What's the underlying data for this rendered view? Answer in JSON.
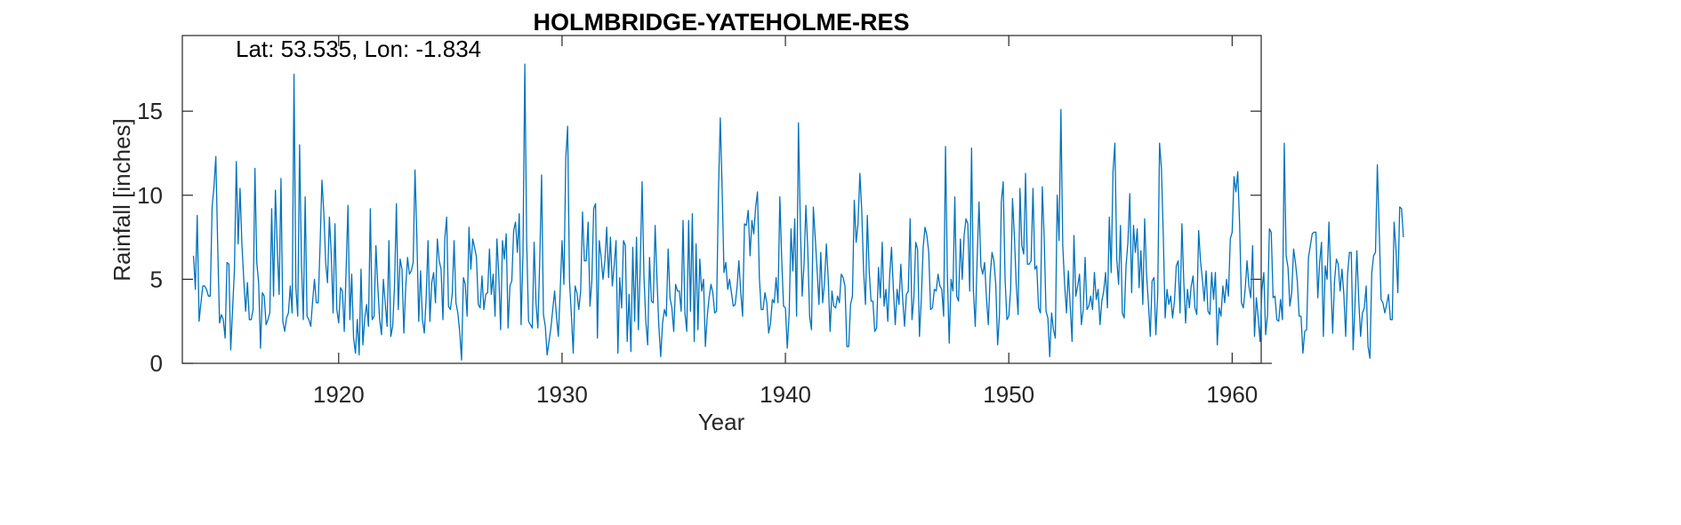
{
  "chart_data": {
    "type": "line",
    "title": "HOLMBRIDGE-YATEHOLME-RES",
    "annotation": "Lat: 53.535, Lon: -1.834",
    "xlabel": "Year",
    "ylabel": "Rainfall [inches]",
    "xlim": [
      1913.0,
      1961.3
    ],
    "ylim": [
      0,
      19.5
    ],
    "x_ticks": [
      1920,
      1930,
      1940,
      1950,
      1960
    ],
    "y_ticks": [
      0,
      5,
      10,
      15
    ],
    "grid": false,
    "series_color": "#0072BD",
    "series": [
      {
        "x_start": 1913.5,
        "x_step": 0.0833333,
        "values": [
          6.4,
          4.4,
          8.8,
          2.5,
          3.6,
          4.6,
          4.6,
          4.4,
          4.0,
          4.0,
          9.3,
          10.5,
          12.3,
          7.0,
          2.4,
          2.9,
          2.6,
          1.5,
          6.0,
          5.9,
          0.8,
          3.2,
          5.6,
          12.0,
          7.1,
          10.4,
          7.1,
          5.0,
          3.1,
          4.8,
          2.6,
          2.6,
          3.2,
          11.6,
          6.0,
          4.8,
          0.9,
          4.2,
          4.0,
          2.3,
          2.6,
          3.0,
          9.2,
          4.0,
          10.3,
          6.9,
          4.1,
          11.0,
          2.5,
          1.9,
          2.7,
          3.0,
          4.6,
          3.0,
          17.2,
          4.5,
          2.8,
          13.0,
          6.0,
          2.6,
          9.9,
          2.8,
          2.6,
          2.2,
          3.7,
          5.0,
          3.6,
          3.6,
          7.0,
          10.9,
          9.0,
          6.0,
          4.8,
          8.7,
          6.5,
          3.0,
          8.3,
          3.2,
          2.4,
          4.5,
          4.3,
          1.9,
          5.6,
          9.4,
          2.6,
          5.3,
          1.5,
          0.6,
          2.6,
          0.5,
          5.6,
          1.1,
          2.7,
          3.5,
          2.2,
          9.2,
          2.6,
          2.8,
          7.0,
          4.6,
          2.6,
          1.7,
          5.0,
          3.6,
          2.2,
          7.3,
          1.6,
          2.2,
          4.6,
          9.5,
          3.2,
          6.2,
          5.6,
          1.8,
          4.5,
          6.3,
          5.3,
          5.5,
          6.0,
          11.5,
          7.5,
          2.5,
          5.5,
          2.6,
          1.8,
          3.9,
          7.3,
          2.5,
          4.8,
          5.4,
          3.6,
          7.4,
          6.1,
          5.6,
          2.6,
          7.4,
          8.7,
          3.4,
          3.2,
          4.1,
          7.3,
          3.6,
          3.0,
          1.9,
          0.2,
          5.1,
          4.7,
          2.8,
          8.1,
          5.6,
          7.4,
          6.9,
          6.3,
          3.5,
          3.3,
          5.2,
          3.2,
          4.1,
          4.2,
          6.8,
          4.1,
          5.3,
          2.8,
          7.4,
          5.3,
          2.0,
          7.3,
          6.2,
          7.7,
          2.1,
          4.6,
          4.9,
          7.9,
          8.4,
          6.6,
          8.9,
          2.3,
          6.5,
          17.8,
          7.2,
          2.5,
          2.3,
          2.1,
          7.2,
          3.6,
          2.1,
          6.0,
          11.2,
          2.9,
          2.2,
          0.5,
          1.3,
          2.1,
          3.2,
          4.3,
          2.8,
          1.6,
          4.3,
          7.3,
          4.7,
          12.2,
          14.1,
          4.9,
          2.9,
          0.6,
          4.6,
          4.2,
          3.2,
          4.3,
          9.0,
          6.1,
          6.1,
          8.4,
          3.4,
          4.9,
          9.2,
          9.5,
          1.5,
          7.3,
          6.3,
          5.0,
          6.1,
          8.1,
          5.1,
          7.5,
          4.6,
          5.8,
          7.3,
          0.6,
          5.1,
          3.3,
          7.3,
          7.0,
          1.3,
          4.1,
          0.7,
          6.9,
          2.5,
          7.5,
          2.0,
          5.7,
          10.8,
          5.2,
          2.5,
          1.1,
          6.3,
          3.7,
          3.6,
          8.2,
          5.0,
          2.2,
          0.4,
          2.4,
          3.2,
          2.8,
          6.8,
          3.9,
          3.3,
          1.9,
          4.7,
          4.3,
          4.3,
          3.1,
          8.5,
          3.0,
          1.9,
          8.5,
          3.1,
          8.9,
          1.3,
          7.1,
          2.0,
          6.2,
          4.3,
          5.0,
          1.0,
          2.8,
          3.9,
          4.7,
          4.2,
          3.0,
          3.1,
          10.1,
          14.6,
          10.4,
          5.4,
          6.0,
          4.4,
          5.0,
          4.2,
          3.4,
          3.5,
          4.5,
          6.1,
          4.2,
          2.8,
          8.3,
          8.2,
          9.1,
          6.4,
          8.5,
          7.7,
          9.3,
          10.2,
          5.1,
          3.2,
          3.2,
          4.2,
          3.6,
          1.8,
          2.4,
          3.8,
          3.6,
          5.1,
          3.6,
          9.9,
          6.2,
          3.4,
          3.3,
          0.9,
          2.9,
          8.0,
          5.5,
          8.6,
          2.8,
          14.3,
          8.3,
          4.0,
          5.9,
          9.4,
          6.8,
          2.8,
          2.0,
          9.3,
          7.5,
          5.6,
          3.5,
          6.6,
          3.6,
          4.8,
          7.1,
          5.0,
          1.9,
          4.3,
          3.4,
          3.3,
          4.0,
          3.6,
          5.3,
          5.1,
          4.6,
          1.0,
          1.0,
          3.5,
          4.0,
          9.7,
          7.2,
          8.3,
          11.3,
          9.1,
          5.5,
          3.5,
          8.8,
          5.5,
          3.7,
          3.7,
          1.9,
          2.1,
          5.7,
          3.9,
          7.2,
          3.4,
          4.4,
          2.5,
          5.2,
          6.9,
          4.4,
          2.3,
          4.4,
          3.5,
          5.9,
          3.8,
          2.2,
          4.1,
          4.3,
          8.6,
          2.6,
          3.9,
          7.2,
          6.8,
          1.6,
          3.8,
          6.9,
          8.1,
          7.6,
          6.6,
          3.2,
          3.3,
          4.4,
          4.3,
          5.3,
          4.6,
          4.4,
          2.8,
          12.9,
          5.3,
          1.2,
          5.0,
          4.3,
          9.9,
          4.0,
          3.7,
          7.4,
          5.0,
          7.6,
          8.6,
          8.3,
          4.3,
          12.8,
          4.3,
          2.2,
          6.2,
          9.6,
          5.8,
          5.3,
          6.0,
          3.9,
          2.3,
          5.2,
          6.6,
          6.1,
          4.7,
          1.1,
          2.9,
          9.6,
          10.8,
          5.0,
          2.6,
          2.8,
          4.4,
          9.8,
          7.6,
          4.7,
          2.9,
          10.4,
          7.0,
          6.5,
          11.3,
          5.9,
          5.9,
          6.1,
          10.4,
          5.6,
          5.8,
          3.3,
          3.0,
          10.5,
          7.5,
          3.1,
          2.7,
          0.4,
          3.0,
          2.0,
          1.5,
          10.0,
          7.3,
          15.1,
          7.0,
          4.7,
          3.0,
          5.5,
          3.4,
          1.3,
          7.6,
          4.0,
          4.6,
          5.3,
          2.3,
          3.2,
          6.3,
          3.2,
          3.4,
          4.0,
          3.2,
          5.4,
          3.8,
          4.4,
          2.3,
          3.7,
          4.3,
          5.4,
          3.3,
          8.7,
          5.4,
          11.4,
          13.1,
          6.2,
          4.7,
          8.2,
          3.0,
          2.7,
          5.8,
          7.2,
          10.1,
          4.2,
          8.2,
          6.6,
          8.0,
          4.5,
          6.7,
          3.5,
          8.6,
          5.3,
          3.6,
          1.6,
          4.9,
          5.1,
          1.7,
          4.1,
          13.1,
          11.6,
          7.6,
          2.7,
          4.4,
          3.5,
          4.0,
          2.7,
          3.7,
          5.8,
          6.1,
          3.0,
          8.3,
          4.9,
          2.4,
          4.4,
          3.3,
          4.6,
          5.2,
          3.3,
          2.9,
          7.9,
          6.1,
          5.0,
          3.7,
          5.5,
          3.1,
          2.9,
          5.4,
          3.8,
          5.4,
          1.1,
          3.3,
          2.8,
          4.6,
          3.6,
          5.0,
          4.0,
          7.4,
          7.8,
          11.1,
          10.2,
          11.4,
          8.3,
          3.6,
          3.3,
          4.4,
          6.1,
          4.6,
          3.9,
          7.0,
          1.6,
          3.9,
          2.7,
          1.3,
          4.4,
          5.4,
          1.7,
          2.9,
          8.0,
          7.8,
          3.9,
          4.0,
          2.6,
          2.5,
          3.8,
          2.6,
          13.1,
          6.4,
          5.7,
          3.4,
          4.2,
          6.8,
          6.0,
          4.9,
          2.8,
          2.8,
          0.6,
          1.9,
          2.0,
          6.3,
          7.0,
          7.7,
          7.8,
          7.8,
          3.9,
          6.0,
          7.2,
          1.6,
          5.8,
          5.0,
          8.4,
          4.9,
          1.8,
          4.9,
          6.2,
          5.9,
          4.3,
          5.6,
          4.1,
          1.6,
          5.3,
          6.6,
          6.6,
          0.8,
          3.5,
          6.7,
          3.8,
          1.6,
          3.0,
          3.3,
          4.6,
          1.0,
          0.3,
          5.4,
          6.4,
          6.6,
          11.8,
          8.0,
          3.8,
          3.6,
          3.0,
          3.5,
          4.1,
          2.6,
          2.6,
          8.4,
          6.8,
          4.2,
          9.3,
          9.2,
          7.5
        ]
      }
    ]
  }
}
